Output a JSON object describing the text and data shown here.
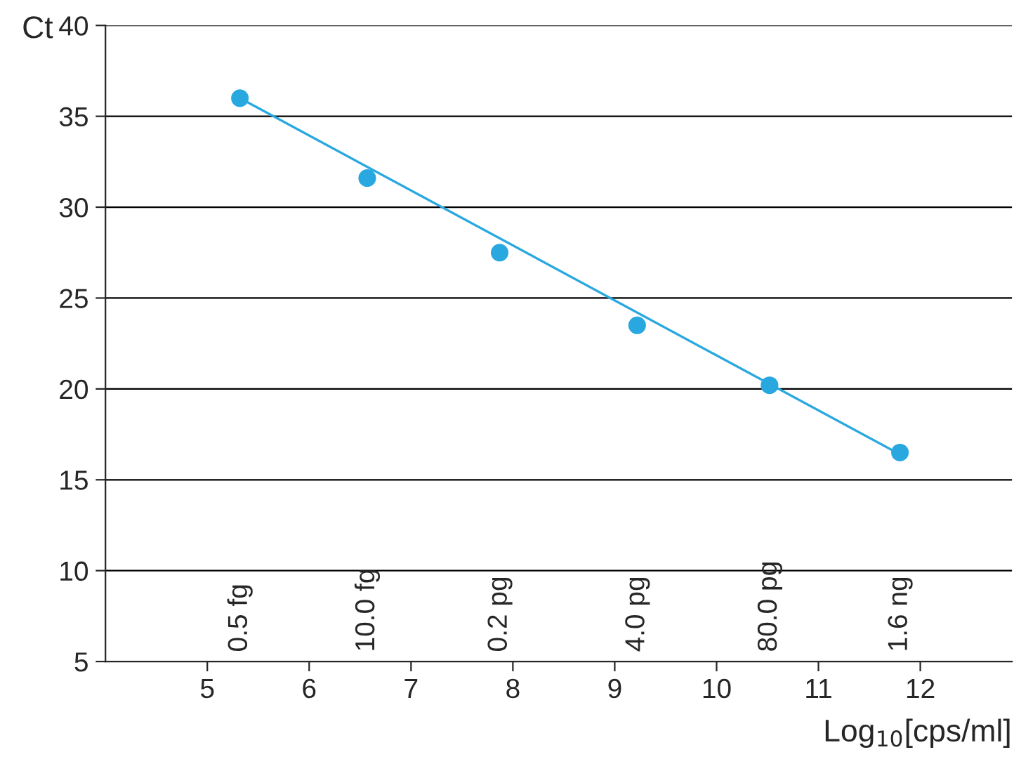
{
  "chart_data": {
    "type": "scatter",
    "xlabel": "Log$_{10}$[cps/ml]",
    "ylabel": "Ct",
    "xlim": [
      4,
      12.9
    ],
    "xticks": [
      5,
      6,
      7,
      8,
      9,
      10,
      11,
      12
    ],
    "ylim": [
      5,
      40
    ],
    "yticks": [
      5,
      10,
      15,
      20,
      25,
      30,
      35,
      40
    ],
    "grid": "y",
    "series": [
      {
        "color": "#29a8e0",
        "marker": "circle",
        "x": [
          5.32,
          6.57,
          7.87,
          9.22,
          10.52,
          11.8
        ],
        "values": [
          36.0,
          31.6,
          27.5,
          23.5,
          20.2,
          16.5
        ]
      },
      {
        "type": "line",
        "color": "#29a8e0",
        "x": [
          5.32,
          11.8
        ],
        "values": [
          36.0,
          16.4
        ]
      }
    ],
    "annotations": [
      "0.5 fg",
      "10.0 fg",
      "0.2 pg",
      "4.0 pg",
      "80.0 pg",
      "1.6 ng"
    ]
  }
}
